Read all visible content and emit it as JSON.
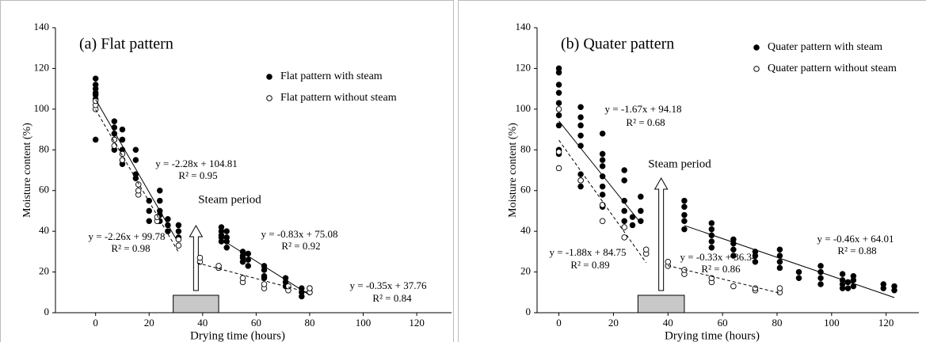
{
  "chart_data": [
    {
      "type": "scatter",
      "title": "(a) Flat pattern",
      "xlabel": "Drying time (hours)",
      "ylabel": "Moisture content (%)",
      "xlim": [
        -15,
        133
      ],
      "ylim": [
        0,
        140
      ],
      "xticks": [
        0,
        20,
        40,
        60,
        80,
        100,
        120
      ],
      "yticks": [
        0,
        20,
        40,
        60,
        80,
        100,
        120,
        140
      ],
      "legend": "upper right",
      "series": [
        {
          "name": "Flat pattern with steam",
          "color": "#000000",
          "marker": "filled",
          "x": [
            0,
            0,
            0,
            0,
            0,
            0,
            0,
            7,
            7,
            7,
            7,
            7,
            10,
            10,
            10,
            10,
            10,
            15,
            15,
            15,
            15,
            20,
            20,
            20,
            24,
            24,
            24,
            24,
            24,
            27,
            27,
            27,
            31,
            31,
            31,
            47,
            47,
            47,
            47,
            47,
            49,
            49,
            49,
            49,
            55,
            55,
            55,
            55,
            57,
            57,
            57,
            63,
            63,
            63,
            63,
            71,
            71,
            71,
            77,
            77,
            77,
            80,
            80
          ],
          "y": [
            85,
            105,
            108,
            110,
            112,
            115,
            107,
            80,
            85,
            88,
            91,
            94,
            73,
            75,
            80,
            85,
            90,
            66,
            68,
            75,
            80,
            50,
            55,
            45,
            45,
            50,
            55,
            60,
            48,
            40,
            43,
            46,
            37,
            40,
            43,
            35,
            38,
            40,
            42,
            37,
            32,
            35,
            37,
            40,
            25,
            27,
            30,
            28,
            26,
            29,
            23,
            18,
            21,
            23,
            17,
            13,
            15,
            17,
            8,
            10,
            12,
            10,
            12
          ]
        },
        {
          "name": "Flat pattern without steam",
          "color": "#000000",
          "marker": "open",
          "x": [
            0,
            0,
            0,
            7,
            7,
            10,
            10,
            16,
            16,
            16,
            23,
            23,
            31,
            31,
            39,
            39,
            46,
            46,
            55,
            55,
            63,
            63,
            72,
            72,
            80,
            80
          ],
          "y": [
            100,
            102,
            104,
            82,
            85,
            75,
            78,
            58,
            60,
            63,
            45,
            47,
            33,
            36,
            25,
            27,
            22,
            23,
            15,
            17,
            12,
            14,
            11,
            13,
            10,
            12
          ]
        }
      ],
      "fits": [
        {
          "equation": "y = -2.28x + 104.81",
          "r2": "R² = 0.95",
          "slope": -2.28,
          "intercept": 104.81,
          "x_range": [
            0,
            30
          ],
          "dashed": false
        },
        {
          "equation": "y = -2.26x + 99.78",
          "r2": "R² = 0.98",
          "slope": -2.26,
          "intercept": 99.78,
          "x_range": [
            0,
            31
          ],
          "dashed": true
        },
        {
          "equation": "y = -0.83x + 75.08",
          "r2": "R² = 0.92",
          "slope": -0.83,
          "intercept": 75.08,
          "x_range": [
            47,
            80
          ],
          "dashed": false
        },
        {
          "equation": "y = -0.35x + 37.76",
          "r2": "R² = 0.84",
          "slope": -0.35,
          "intercept": 37.76,
          "x_range": [
            38,
            80
          ],
          "dashed": true
        }
      ],
      "annotation": "Steam period",
      "steam_period": [
        29,
        46
      ]
    },
    {
      "type": "scatter",
      "title": "(b) Quater pattern",
      "xlabel": "Drying time (hours)",
      "ylabel": "Moisture content (%)",
      "xlim": [
        -8,
        132
      ],
      "ylim": [
        0,
        140
      ],
      "xticks": [
        0,
        20,
        40,
        60,
        80,
        100,
        120
      ],
      "yticks": [
        0,
        20,
        40,
        60,
        80,
        100,
        120,
        140
      ],
      "legend": "upper right",
      "series": [
        {
          "name": "Quater pattern with steam",
          "color": "#000000",
          "marker": "filled",
          "x": [
            0,
            0,
            0,
            0,
            0,
            0,
            0,
            0,
            0,
            8,
            8,
            8,
            8,
            8,
            8,
            8,
            8,
            16,
            16,
            16,
            16,
            16,
            16,
            16,
            16,
            24,
            24,
            24,
            24,
            24,
            27,
            27,
            30,
            30,
            30,
            46,
            46,
            46,
            46,
            46,
            56,
            56,
            56,
            56,
            56,
            64,
            64,
            64,
            64,
            72,
            72,
            72,
            81,
            81,
            81,
            81,
            88,
            88,
            96,
            96,
            96,
            96,
            104,
            104,
            104,
            104,
            106,
            106,
            108,
            108,
            108,
            119,
            119,
            123,
            123
          ],
          "y": [
            78,
            80,
            92,
            97,
            103,
            108,
            112,
            118,
            120,
            62,
            65,
            68,
            82,
            87,
            92,
            96,
            101,
            52,
            58,
            62,
            67,
            72,
            75,
            78,
            88,
            45,
            50,
            55,
            65,
            70,
            43,
            47,
            45,
            50,
            57,
            41,
            45,
            48,
            52,
            55,
            32,
            35,
            38,
            41,
            44,
            28,
            31,
            34,
            36,
            25,
            28,
            30,
            22,
            25,
            28,
            31,
            17,
            20,
            14,
            17,
            20,
            23,
            12,
            14,
            16,
            19,
            12,
            15,
            13,
            16,
            18,
            12,
            14,
            11,
            13
          ]
        },
        {
          "name": "Quater pattern without steam",
          "color": "#000000",
          "marker": "open",
          "x": [
            0,
            0,
            0,
            8,
            16,
            16,
            24,
            24,
            32,
            32,
            40,
            40,
            46,
            46,
            56,
            56,
            64,
            72,
            72,
            81,
            81
          ],
          "y": [
            71,
            79,
            100,
            65,
            45,
            53,
            37,
            42,
            29,
            31,
            23,
            25,
            19,
            21,
            15,
            17,
            13,
            11,
            12,
            10,
            12
          ]
        }
      ],
      "fits": [
        {
          "equation": "y = -1.67x + 94.18",
          "r2": "R² = 0.68",
          "slope": -1.67,
          "intercept": 94.18,
          "x_range": [
            0,
            30
          ],
          "dashed": false
        },
        {
          "equation": "y = -1.88x + 84.75",
          "r2": "R² = 0.89",
          "slope": -1.88,
          "intercept": 84.75,
          "x_range": [
            0,
            32
          ],
          "dashed": true
        },
        {
          "equation": "y = -0.33x + 36.34",
          "r2": "R² = 0.86",
          "slope": -0.33,
          "intercept": 36.34,
          "x_range": [
            40,
            81
          ],
          "dashed": true
        },
        {
          "equation": "y = -0.46x + 64.01",
          "r2": "R² = 0.88",
          "slope": -0.46,
          "intercept": 64.01,
          "x_range": [
            46,
            123
          ],
          "dashed": false
        }
      ],
      "annotation": "Steam period",
      "steam_period": [
        29,
        46
      ]
    }
  ]
}
